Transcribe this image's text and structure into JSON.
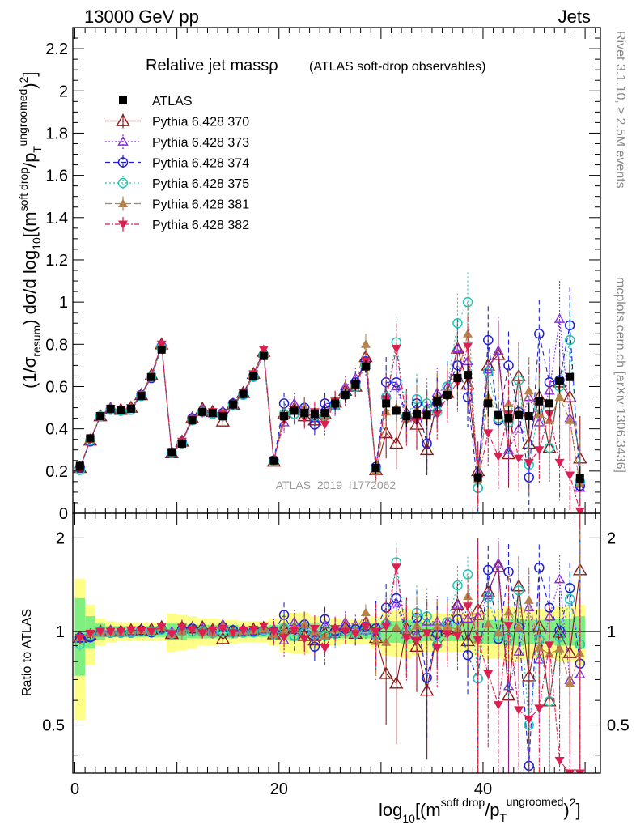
{
  "header": {
    "left": "13000 GeV pp",
    "right": "Jets"
  },
  "side_labels": {
    "rivet": "Rivet 3.1.10, ≥ 2.5M events",
    "mcplots": "mcplots.cern.ch [arXiv:1306.3436]"
  },
  "chart_data": {
    "type": "scatter",
    "title_main": "Relative jet massρ",
    "title_sub": "(ATLAS soft-drop observables)",
    "watermark": "ATLAS_2019_I1772062",
    "xlabel": "log10[(m^soft drop/pT^ungroomed)^2]",
    "ylabel_main": "(1/σresum) dσ/d log10[(m^soft drop/pT^ungroomed)^2]",
    "ylabel_ratio": "Ratio to ATLAS",
    "xlim": [
      -0.2,
      51.5
    ],
    "ylim_main": [
      0,
      2.3
    ],
    "ylim_ratio": [
      0.35,
      2.4
    ],
    "ratio_scale": "log",
    "x_ticks": [
      0,
      20,
      40
    ],
    "y_ticks_main": [
      0,
      0.2,
      0.4,
      0.6,
      0.8,
      1,
      1.2,
      1.4,
      1.6,
      1.8,
      2,
      2.2
    ],
    "y_ticks_ratio": [
      0.5,
      1,
      2
    ],
    "legend_position": "top-left",
    "colors": {
      "atlas": "#000000",
      "p370": "#8b1a1a",
      "p373": "#8a2be2",
      "p374": "#1f1fd6",
      "p375": "#20c8b4",
      "p381": "#b5824a",
      "p382": "#dc1e50",
      "band_inner": "#7ff07f",
      "band_outer": "#ffff88"
    },
    "x": [
      0.5,
      1.5,
      2.5,
      3.5,
      4.5,
      5.5,
      6.5,
      7.5,
      8.5,
      9.5,
      10.5,
      11.5,
      12.5,
      13.5,
      14.5,
      15.5,
      16.5,
      17.5,
      18.5,
      19.5,
      20.5,
      21.5,
      22.5,
      23.5,
      24.5,
      25.5,
      26.5,
      27.5,
      28.5,
      29.5,
      30.5,
      31.5,
      32.5,
      33.5,
      34.5,
      35.5,
      36.5,
      37.5,
      38.5,
      39.5,
      40.5,
      41.5,
      42.5,
      43.5,
      44.5,
      45.5,
      46.5,
      47.5,
      48.5,
      49.5
    ],
    "data": [
      0.225,
      0.355,
      0.46,
      0.495,
      0.49,
      0.495,
      0.555,
      0.645,
      0.775,
      0.29,
      0.33,
      0.44,
      0.48,
      0.475,
      0.46,
      0.515,
      0.565,
      0.65,
      0.745,
      0.25,
      0.46,
      0.485,
      0.475,
      0.47,
      0.475,
      0.52,
      0.56,
      0.61,
      0.695,
      0.215,
      0.52,
      0.485,
      0.46,
      0.47,
      0.465,
      0.53,
      0.56,
      0.64,
      0.655,
      0.17,
      0.52,
      0.465,
      0.45,
      0.465,
      0.46,
      0.53,
      0.52,
      0.625,
      0.645,
      0.165
    ],
    "data_err": [
      0.01,
      0.01,
      0.01,
      0.01,
      0.01,
      0.01,
      0.01,
      0.01,
      0.01,
      0.01,
      0.02,
      0.02,
      0.02,
      0.02,
      0.02,
      0.02,
      0.02,
      0.02,
      0.02,
      0.02,
      0.03,
      0.03,
      0.03,
      0.03,
      0.03,
      0.03,
      0.03,
      0.03,
      0.03,
      0.03,
      0.05,
      0.05,
      0.05,
      0.05,
      0.05,
      0.05,
      0.05,
      0.05,
      0.05,
      0.05,
      0.06,
      0.06,
      0.06,
      0.06,
      0.06,
      0.06,
      0.06,
      0.06,
      0.06,
      0.06
    ],
    "band_inner_rel": [
      0.28,
      0.12,
      0.06,
      0.04,
      0.04,
      0.04,
      0.04,
      0.04,
      0.04,
      0.06,
      0.06,
      0.05,
      0.05,
      0.05,
      0.05,
      0.05,
      0.04,
      0.04,
      0.04,
      0.05,
      0.06,
      0.07,
      0.07,
      0.06,
      0.05,
      0.05,
      0.05,
      0.05,
      0.05,
      0.06,
      0.08,
      0.08,
      0.09,
      0.08,
      0.07,
      0.07,
      0.07,
      0.07,
      0.07,
      0.08,
      0.09,
      0.09,
      0.1,
      0.1,
      0.09,
      0.09,
      0.09,
      0.1,
      0.1,
      0.12
    ],
    "band_outer_rel": [
      0.48,
      0.22,
      0.1,
      0.08,
      0.07,
      0.07,
      0.07,
      0.07,
      0.07,
      0.14,
      0.13,
      0.12,
      0.1,
      0.1,
      0.09,
      0.09,
      0.08,
      0.08,
      0.08,
      0.1,
      0.14,
      0.15,
      0.15,
      0.12,
      0.1,
      0.1,
      0.09,
      0.09,
      0.09,
      0.12,
      0.16,
      0.17,
      0.18,
      0.16,
      0.14,
      0.14,
      0.14,
      0.14,
      0.14,
      0.16,
      0.18,
      0.18,
      0.2,
      0.2,
      0.18,
      0.18,
      0.18,
      0.2,
      0.2,
      0.22
    ],
    "series": [
      {
        "name": "Pythia 6.428 370",
        "color_key": "p370",
        "dash": "",
        "marker": "tri-up-open",
        "values": [
          0.215,
          0.345,
          0.46,
          0.495,
          0.49,
          0.5,
          0.56,
          0.655,
          0.8,
          0.285,
          0.34,
          0.45,
          0.495,
          0.48,
          0.435,
          0.515,
          0.57,
          0.66,
          0.765,
          0.245,
          0.47,
          0.495,
          0.46,
          0.44,
          0.47,
          0.525,
          0.58,
          0.6,
          0.74,
          0.205,
          0.38,
          0.33,
          0.47,
          0.42,
          0.3,
          0.53,
          0.57,
          0.78,
          0.61,
          0.2,
          0.7,
          0.75,
          0.28,
          0.65,
          0.33,
          0.55,
          0.31,
          0.62,
          0.55,
          0.26
        ],
        "err": [
          0.01,
          0.01,
          0.01,
          0.01,
          0.01,
          0.01,
          0.01,
          0.01,
          0.02,
          0.01,
          0.02,
          0.02,
          0.02,
          0.02,
          0.02,
          0.02,
          0.02,
          0.02,
          0.02,
          0.02,
          0.05,
          0.05,
          0.05,
          0.05,
          0.05,
          0.05,
          0.05,
          0.05,
          0.05,
          0.05,
          0.12,
          0.12,
          0.12,
          0.12,
          0.12,
          0.12,
          0.12,
          0.14,
          0.14,
          0.14,
          0.16,
          0.16,
          0.16,
          0.16,
          0.16,
          0.16,
          0.16,
          0.16,
          0.18,
          0.2
        ]
      },
      {
        "name": "Pythia 6.428 373",
        "color_key": "p373",
        "dash": "2,2",
        "marker": "tri-up-open-small",
        "values": [
          0.215,
          0.34,
          0.46,
          0.5,
          0.49,
          0.495,
          0.56,
          0.65,
          0.8,
          0.29,
          0.34,
          0.455,
          0.49,
          0.475,
          0.485,
          0.51,
          0.57,
          0.65,
          0.755,
          0.255,
          0.43,
          0.52,
          0.5,
          0.45,
          0.5,
          0.51,
          0.6,
          0.64,
          0.7,
          0.21,
          0.56,
          0.6,
          0.45,
          0.46,
          0.5,
          0.57,
          0.6,
          0.78,
          0.72,
          0.19,
          0.68,
          0.77,
          0.3,
          0.4,
          0.55,
          0.43,
          0.58,
          0.92,
          0.45,
          0.12
        ],
        "err": [
          0.01,
          0.01,
          0.01,
          0.01,
          0.01,
          0.01,
          0.01,
          0.01,
          0.02,
          0.01,
          0.02,
          0.02,
          0.02,
          0.02,
          0.02,
          0.02,
          0.02,
          0.02,
          0.02,
          0.02,
          0.05,
          0.05,
          0.05,
          0.05,
          0.05,
          0.05,
          0.05,
          0.05,
          0.05,
          0.05,
          0.12,
          0.12,
          0.12,
          0.12,
          0.12,
          0.12,
          0.12,
          0.14,
          0.14,
          0.14,
          0.16,
          0.16,
          0.16,
          0.16,
          0.16,
          0.16,
          0.16,
          0.18,
          0.18,
          0.2
        ]
      },
      {
        "name": "Pythia 6.428 374",
        "color_key": "p374",
        "dash": "6,4",
        "marker": "circle-open",
        "values": [
          0.215,
          0.34,
          0.46,
          0.49,
          0.485,
          0.49,
          0.56,
          0.64,
          0.79,
          0.285,
          0.335,
          0.45,
          0.48,
          0.47,
          0.475,
          0.52,
          0.565,
          0.65,
          0.75,
          0.25,
          0.52,
          0.47,
          0.5,
          0.42,
          0.52,
          0.52,
          0.57,
          0.62,
          0.72,
          0.22,
          0.62,
          0.62,
          0.46,
          0.52,
          0.33,
          0.52,
          0.6,
          0.7,
          0.55,
          0.12,
          0.82,
          0.44,
          0.7,
          0.48,
          0.17,
          0.85,
          0.62,
          0.63,
          0.89,
          0.13
        ],
        "err": [
          0.01,
          0.01,
          0.01,
          0.01,
          0.01,
          0.01,
          0.01,
          0.01,
          0.02,
          0.01,
          0.02,
          0.02,
          0.02,
          0.02,
          0.02,
          0.02,
          0.02,
          0.02,
          0.02,
          0.02,
          0.05,
          0.05,
          0.05,
          0.05,
          0.05,
          0.05,
          0.05,
          0.05,
          0.05,
          0.05,
          0.12,
          0.12,
          0.12,
          0.12,
          0.12,
          0.12,
          0.12,
          0.14,
          0.14,
          0.14,
          0.16,
          0.16,
          0.16,
          0.16,
          0.16,
          0.16,
          0.16,
          0.18,
          0.18,
          0.2
        ]
      },
      {
        "name": "Pythia 6.428 375",
        "color_key": "p375",
        "dash": "2,3",
        "marker": "circle-open",
        "values": [
          0.205,
          0.345,
          0.46,
          0.49,
          0.485,
          0.49,
          0.555,
          0.645,
          0.785,
          0.285,
          0.33,
          0.44,
          0.48,
          0.47,
          0.46,
          0.51,
          0.56,
          0.645,
          0.75,
          0.245,
          0.47,
          0.47,
          0.47,
          0.46,
          0.46,
          0.51,
          0.56,
          0.6,
          0.7,
          0.21,
          0.55,
          0.81,
          0.46,
          0.54,
          0.52,
          0.48,
          0.6,
          0.9,
          1.0,
          0.12,
          0.67,
          0.45,
          0.43,
          0.63,
          0.23,
          0.5,
          0.31,
          0.6,
          0.82,
          0.15
        ],
        "err": [
          0.01,
          0.01,
          0.01,
          0.01,
          0.01,
          0.01,
          0.01,
          0.01,
          0.02,
          0.01,
          0.02,
          0.02,
          0.02,
          0.02,
          0.02,
          0.02,
          0.02,
          0.02,
          0.02,
          0.02,
          0.05,
          0.05,
          0.05,
          0.05,
          0.05,
          0.05,
          0.05,
          0.05,
          0.05,
          0.05,
          0.12,
          0.12,
          0.12,
          0.12,
          0.12,
          0.12,
          0.12,
          0.14,
          0.14,
          0.14,
          0.16,
          0.16,
          0.16,
          0.16,
          0.16,
          0.16,
          0.16,
          0.18,
          0.18,
          0.2
        ]
      },
      {
        "name": "Pythia 6.428 381",
        "color_key": "p381",
        "dash": "8,4",
        "marker": "tri-up-filled",
        "values": [
          0.215,
          0.35,
          0.46,
          0.495,
          0.49,
          0.5,
          0.56,
          0.65,
          0.8,
          0.285,
          0.33,
          0.45,
          0.48,
          0.47,
          0.48,
          0.515,
          0.565,
          0.655,
          0.76,
          0.245,
          0.46,
          0.5,
          0.5,
          0.47,
          0.46,
          0.53,
          0.58,
          0.61,
          0.8,
          0.2,
          0.48,
          0.5,
          0.45,
          0.49,
          0.46,
          0.55,
          0.58,
          0.65,
          0.85,
          0.16,
          0.55,
          0.46,
          0.52,
          0.48,
          0.58,
          0.47,
          0.44,
          0.55,
          0.44,
          0.14
        ],
        "err": [
          0.01,
          0.01,
          0.01,
          0.01,
          0.01,
          0.01,
          0.01,
          0.01,
          0.02,
          0.01,
          0.02,
          0.02,
          0.02,
          0.02,
          0.02,
          0.02,
          0.02,
          0.02,
          0.02,
          0.02,
          0.05,
          0.05,
          0.05,
          0.05,
          0.05,
          0.05,
          0.05,
          0.05,
          0.05,
          0.05,
          0.12,
          0.12,
          0.12,
          0.12,
          0.12,
          0.12,
          0.12,
          0.14,
          0.14,
          0.14,
          0.16,
          0.16,
          0.16,
          0.16,
          0.16,
          0.16,
          0.16,
          0.18,
          0.18,
          0.2
        ]
      },
      {
        "name": "Pythia 6.428 382",
        "color_key": "p382",
        "dash": "6,2,2,2",
        "marker": "tri-down-filled",
        "values": [
          0.215,
          0.35,
          0.46,
          0.495,
          0.49,
          0.5,
          0.56,
          0.645,
          0.8,
          0.285,
          0.34,
          0.445,
          0.475,
          0.48,
          0.47,
          0.51,
          0.57,
          0.66,
          0.775,
          0.25,
          0.44,
          0.49,
          0.45,
          0.48,
          0.42,
          0.53,
          0.56,
          0.6,
          0.72,
          0.215,
          0.54,
          0.78,
          0.44,
          0.44,
          0.46,
          0.47,
          0.55,
          0.62,
          0.79,
          0.16,
          0.38,
          0.27,
          0.47,
          0.26,
          0.24,
          0.3,
          0.47,
          0.24,
          0.18,
          0.01
        ],
        "err": [
          0.01,
          0.01,
          0.01,
          0.01,
          0.01,
          0.01,
          0.01,
          0.01,
          0.02,
          0.01,
          0.02,
          0.02,
          0.02,
          0.02,
          0.02,
          0.02,
          0.02,
          0.02,
          0.02,
          0.02,
          0.05,
          0.05,
          0.05,
          0.05,
          0.05,
          0.05,
          0.05,
          0.05,
          0.05,
          0.05,
          0.12,
          0.12,
          0.12,
          0.12,
          0.12,
          0.12,
          0.12,
          0.14,
          0.14,
          0.14,
          0.16,
          0.16,
          0.16,
          0.16,
          0.16,
          0.16,
          0.16,
          0.18,
          0.18,
          0.2
        ]
      }
    ],
    "legend": [
      "ATLAS",
      "Pythia 6.428 370",
      "Pythia 6.428 373",
      "Pythia 6.428 374",
      "Pythia 6.428 375",
      "Pythia 6.428 381",
      "Pythia 6.428 382"
    ]
  }
}
